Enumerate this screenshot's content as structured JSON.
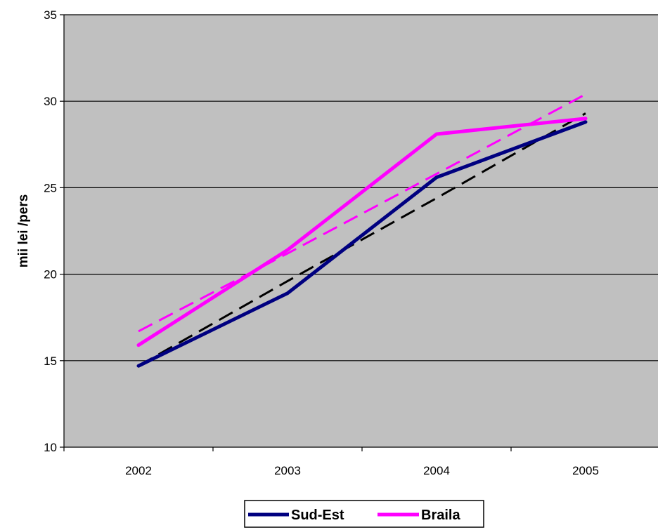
{
  "chart_data": {
    "type": "line",
    "title": "",
    "xlabel": "",
    "ylabel": "mii lei /pers",
    "categories": [
      "2002",
      "2003",
      "2004",
      "2005"
    ],
    "ylim": [
      10,
      35
    ],
    "yticks": [
      10,
      15,
      20,
      25,
      30,
      35
    ],
    "grid": "horizontal",
    "legend_position": "bottom",
    "plot_background": "#c0c0c0",
    "series": [
      {
        "name": "Sud-Est",
        "values": [
          14.7,
          18.9,
          25.6,
          28.8
        ],
        "color": "#000080",
        "style": "solid"
      },
      {
        "name": "Braila",
        "values": [
          15.9,
          21.4,
          28.1,
          29.0
        ],
        "color": "#ff00ff",
        "style": "solid"
      }
    ],
    "trendlines": [
      {
        "of": "Sud-Est",
        "values": [
          14.7,
          19.6,
          24.4,
          29.3
        ],
        "color": "#000000",
        "style": "dashed"
      },
      {
        "of": "Braila",
        "values": [
          16.7,
          21.2,
          25.8,
          30.4
        ],
        "color": "#ff00ff",
        "style": "dashed"
      }
    ]
  }
}
